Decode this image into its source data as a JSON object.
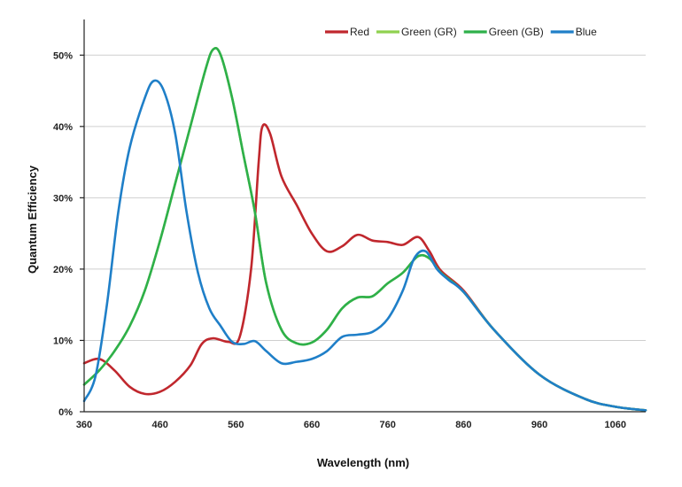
{
  "chart_data": {
    "type": "line",
    "title": "",
    "xlabel": "Wavelength (nm)",
    "ylabel": "Quantum Efficiency",
    "xlim": [
      360,
      1100
    ],
    "ylim": [
      0,
      55
    ],
    "x_ticks": [
      360,
      460,
      560,
      660,
      760,
      860,
      960,
      1060
    ],
    "y_ticks": [
      0,
      10,
      20,
      30,
      40,
      50
    ],
    "y_tick_labels": [
      "0%",
      "10%",
      "20%",
      "30%",
      "40%",
      "50%"
    ],
    "grid": true,
    "legend_position": "top-right",
    "series": [
      {
        "name": "Red",
        "color": "#c0272d",
        "points": [
          [
            360,
            6.8
          ],
          [
            380,
            7.4
          ],
          [
            400,
            5.8
          ],
          [
            420,
            3.5
          ],
          [
            440,
            2.5
          ],
          [
            460,
            2.8
          ],
          [
            480,
            4.2
          ],
          [
            500,
            6.5
          ],
          [
            515,
            9.5
          ],
          [
            530,
            10.3
          ],
          [
            550,
            9.8
          ],
          [
            565,
            10.5
          ],
          [
            580,
            20
          ],
          [
            590,
            35
          ],
          [
            595,
            40
          ],
          [
            605,
            39
          ],
          [
            620,
            33
          ],
          [
            640,
            29
          ],
          [
            660,
            25
          ],
          [
            680,
            22.5
          ],
          [
            700,
            23.2
          ],
          [
            720,
            24.8
          ],
          [
            740,
            24
          ],
          [
            760,
            23.8
          ],
          [
            780,
            23.4
          ],
          [
            800,
            24.5
          ],
          [
            815,
            22.5
          ],
          [
            830,
            19.8
          ],
          [
            860,
            17
          ],
          [
            900,
            11.5
          ],
          [
            960,
            5.2
          ],
          [
            1020,
            1.8
          ],
          [
            1060,
            0.7
          ],
          [
            1100,
            0.2
          ]
        ]
      },
      {
        "name": "Green (GR)",
        "color": "#8fd14f",
        "points": [
          [
            360,
            3.8
          ],
          [
            380,
            5.8
          ],
          [
            400,
            8.5
          ],
          [
            420,
            12
          ],
          [
            440,
            17
          ],
          [
            460,
            24
          ],
          [
            480,
            32
          ],
          [
            500,
            40
          ],
          [
            520,
            48
          ],
          [
            530,
            50.8
          ],
          [
            540,
            50
          ],
          [
            555,
            44
          ],
          [
            570,
            36
          ],
          [
            585,
            28
          ],
          [
            600,
            18
          ],
          [
            620,
            11.5
          ],
          [
            640,
            9.6
          ],
          [
            660,
            9.7
          ],
          [
            680,
            11.5
          ],
          [
            700,
            14.5
          ],
          [
            720,
            16
          ],
          [
            740,
            16.2
          ],
          [
            760,
            18
          ],
          [
            780,
            19.5
          ],
          [
            800,
            21.8
          ],
          [
            815,
            21.5
          ],
          [
            830,
            19.5
          ],
          [
            860,
            16.8
          ],
          [
            900,
            11.5
          ],
          [
            960,
            5.2
          ],
          [
            1020,
            1.8
          ],
          [
            1060,
            0.7
          ],
          [
            1100,
            0.2
          ]
        ]
      },
      {
        "name": "Green (GB)",
        "color": "#2eb04a",
        "points": [
          [
            360,
            3.8
          ],
          [
            380,
            5.8
          ],
          [
            400,
            8.5
          ],
          [
            420,
            12
          ],
          [
            440,
            17
          ],
          [
            460,
            24
          ],
          [
            480,
            32
          ],
          [
            500,
            40
          ],
          [
            520,
            48
          ],
          [
            530,
            50.8
          ],
          [
            540,
            50
          ],
          [
            555,
            44
          ],
          [
            570,
            36
          ],
          [
            585,
            28
          ],
          [
            600,
            18
          ],
          [
            620,
            11.5
          ],
          [
            640,
            9.6
          ],
          [
            660,
            9.7
          ],
          [
            680,
            11.5
          ],
          [
            700,
            14.5
          ],
          [
            720,
            16
          ],
          [
            740,
            16.2
          ],
          [
            760,
            18
          ],
          [
            780,
            19.5
          ],
          [
            800,
            21.8
          ],
          [
            815,
            21.5
          ],
          [
            830,
            19.5
          ],
          [
            860,
            16.8
          ],
          [
            900,
            11.5
          ],
          [
            960,
            5.2
          ],
          [
            1020,
            1.8
          ],
          [
            1060,
            0.7
          ],
          [
            1100,
            0.2
          ]
        ]
      },
      {
        "name": "Blue",
        "color": "#1f7fc8",
        "points": [
          [
            360,
            1.5
          ],
          [
            375,
            5
          ],
          [
            390,
            15
          ],
          [
            405,
            28
          ],
          [
            420,
            37
          ],
          [
            440,
            44
          ],
          [
            452,
            46.4
          ],
          [
            465,
            45
          ],
          [
            480,
            39
          ],
          [
            495,
            28
          ],
          [
            510,
            19.5
          ],
          [
            525,
            14.5
          ],
          [
            540,
            12
          ],
          [
            555,
            9.8
          ],
          [
            570,
            9.5
          ],
          [
            585,
            9.9
          ],
          [
            600,
            8.5
          ],
          [
            620,
            6.8
          ],
          [
            640,
            7
          ],
          [
            660,
            7.4
          ],
          [
            680,
            8.5
          ],
          [
            700,
            10.5
          ],
          [
            720,
            10.8
          ],
          [
            740,
            11.2
          ],
          [
            760,
            13
          ],
          [
            780,
            17
          ],
          [
            795,
            21.5
          ],
          [
            810,
            22.5
          ],
          [
            825,
            20
          ],
          [
            840,
            18.5
          ],
          [
            860,
            16.8
          ],
          [
            900,
            11.5
          ],
          [
            960,
            5.2
          ],
          [
            1020,
            1.8
          ],
          [
            1060,
            0.7
          ],
          [
            1100,
            0.2
          ]
        ]
      }
    ]
  }
}
